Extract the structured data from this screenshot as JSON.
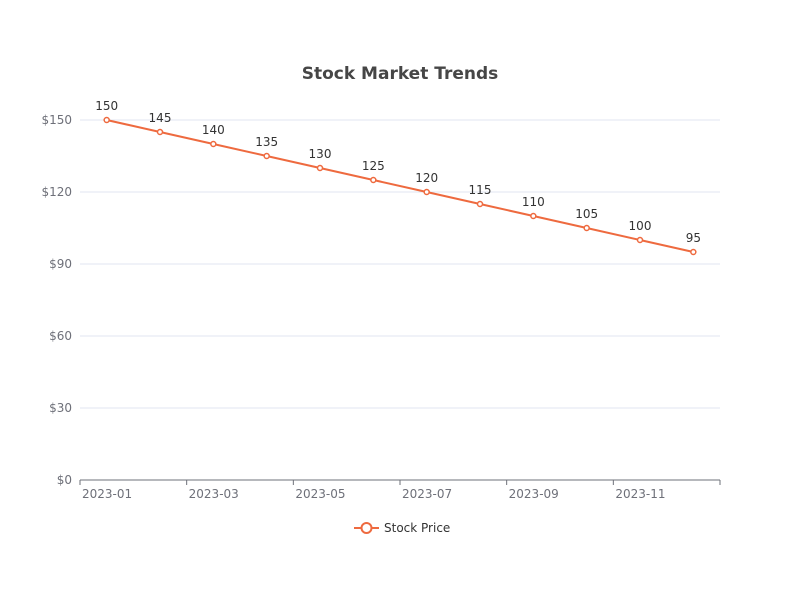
{
  "chart_data": {
    "type": "line",
    "title": "Stock Market Trends",
    "xlabel": "",
    "ylabel": "",
    "x": [
      "2023-01",
      "2023-02",
      "2023-03",
      "2023-04",
      "2023-05",
      "2023-06",
      "2023-07",
      "2023-08",
      "2023-09",
      "2023-10",
      "2023-11",
      "2023-12"
    ],
    "x_tick_labels": [
      "2023-01",
      "2023-03",
      "2023-05",
      "2023-07",
      "2023-09",
      "2023-11"
    ],
    "y_tick_labels": [
      "$0",
      "$30",
      "$60",
      "$90",
      "$120",
      "$150"
    ],
    "ylim": [
      0,
      150
    ],
    "grid": true,
    "legend_position": "bottom",
    "series": [
      {
        "name": "Stock Price",
        "color": "#ee6a3f",
        "values": [
          150,
          145,
          140,
          135,
          130,
          125,
          120,
          115,
          110,
          105,
          100,
          95
        ],
        "data_labels": [
          "150",
          "145",
          "140",
          "135",
          "130",
          "125",
          "120",
          "115",
          "110",
          "105",
          "100",
          "95"
        ]
      }
    ]
  }
}
